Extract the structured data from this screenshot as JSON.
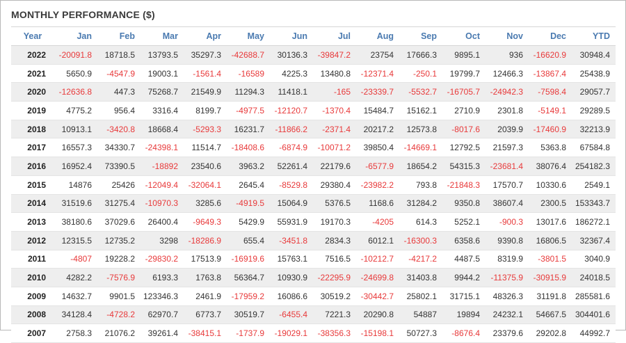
{
  "title": "MONTHLY PERFORMANCE ($)",
  "colors": {
    "header": "#4a7ab0",
    "negative": "#e8393a",
    "positive": "#333333"
  },
  "columns": [
    "Year",
    "Jan",
    "Feb",
    "Mar",
    "Apr",
    "May",
    "Jun",
    "Jul",
    "Aug",
    "Sep",
    "Oct",
    "Nov",
    "Dec",
    "YTD"
  ],
  "rows": [
    [
      "2022",
      "-20091.8",
      "18718.5",
      "13793.5",
      "35297.3",
      "-42688.7",
      "30136.3",
      "-39847.2",
      "23754",
      "17666.3",
      "9895.1",
      "936",
      "-16620.9",
      "30948.4"
    ],
    [
      "2021",
      "5650.9",
      "-4547.9",
      "19003.1",
      "-1561.4",
      "-16589",
      "4225.3",
      "13480.8",
      "-12371.4",
      "-250.1",
      "19799.7",
      "12466.3",
      "-13867.4",
      "25438.9"
    ],
    [
      "2020",
      "-12636.8",
      "447.3",
      "75268.7",
      "21549.9",
      "11294.3",
      "11418.1",
      "-165",
      "-23339.7",
      "-5532.7",
      "-16705.7",
      "-24942.3",
      "-7598.4",
      "29057.7"
    ],
    [
      "2019",
      "4775.2",
      "956.4",
      "3316.4",
      "8199.7",
      "-4977.5",
      "-12120.7",
      "-1370.4",
      "15484.7",
      "15162.1",
      "2710.9",
      "2301.8",
      "-5149.1",
      "29289.5"
    ],
    [
      "2018",
      "10913.1",
      "-3420.8",
      "18668.4",
      "-5293.3",
      "16231.7",
      "-11866.2",
      "-2371.4",
      "20217.2",
      "12573.8",
      "-8017.6",
      "2039.9",
      "-17460.9",
      "32213.9"
    ],
    [
      "2017",
      "16557.3",
      "34330.7",
      "-24398.1",
      "11514.7",
      "-18408.6",
      "-6874.9",
      "-10071.2",
      "39850.4",
      "-14669.1",
      "12792.5",
      "21597.3",
      "5363.8",
      "67584.8"
    ],
    [
      "2016",
      "16952.4",
      "73390.5",
      "-18892",
      "23540.6",
      "3963.2",
      "52261.4",
      "22179.6",
      "-6577.9",
      "18654.2",
      "54315.3",
      "-23681.4",
      "38076.4",
      "254182.3"
    ],
    [
      "2015",
      "14876",
      "25426",
      "-12049.4",
      "-32064.1",
      "2645.4",
      "-8529.8",
      "29380.4",
      "-23982.2",
      "793.8",
      "-21848.3",
      "17570.7",
      "10330.6",
      "2549.1"
    ],
    [
      "2014",
      "31519.6",
      "31275.4",
      "-10970.3",
      "3285.6",
      "-4919.5",
      "15064.9",
      "5376.5",
      "1168.6",
      "31284.2",
      "9350.8",
      "38607.4",
      "2300.5",
      "153343.7"
    ],
    [
      "2013",
      "38180.6",
      "37029.6",
      "26400.4",
      "-9649.3",
      "5429.9",
      "55931.9",
      "19170.3",
      "-4205",
      "614.3",
      "5252.1",
      "-900.3",
      "13017.6",
      "186272.1"
    ],
    [
      "2012",
      "12315.5",
      "12735.2",
      "3298",
      "-18286.9",
      "655.4",
      "-3451.8",
      "2834.3",
      "6012.1",
      "-16300.3",
      "6358.6",
      "9390.8",
      "16806.5",
      "32367.4"
    ],
    [
      "2011",
      "-4807",
      "19228.2",
      "-29830.2",
      "17513.9",
      "-16919.6",
      "15763.1",
      "7516.5",
      "-10212.7",
      "-4217.2",
      "4487.5",
      "8319.9",
      "-3801.5",
      "3040.9"
    ],
    [
      "2010",
      "4282.2",
      "-7576.9",
      "6193.3",
      "1763.8",
      "56364.7",
      "10930.9",
      "-22295.9",
      "-24699.8",
      "31403.8",
      "9944.2",
      "-11375.9",
      "-30915.9",
      "24018.5"
    ],
    [
      "2009",
      "14632.7",
      "9901.5",
      "123346.3",
      "2461.9",
      "-17959.2",
      "16086.6",
      "30519.2",
      "-30442.7",
      "25802.1",
      "31715.1",
      "48326.3",
      "31191.8",
      "285581.6"
    ],
    [
      "2008",
      "34128.4",
      "-4728.2",
      "62970.7",
      "6773.7",
      "30519.7",
      "-6455.4",
      "7221.3",
      "20290.8",
      "54887",
      "19894",
      "24232.1",
      "54667.5",
      "304401.6"
    ],
    [
      "2007",
      "2758.3",
      "21076.2",
      "39261.4",
      "-38415.1",
      "-1737.9",
      "-19029.1",
      "-38356.3",
      "-15198.1",
      "50727.3",
      "-8676.4",
      "23379.6",
      "29202.8",
      "44992.7"
    ]
  ]
}
